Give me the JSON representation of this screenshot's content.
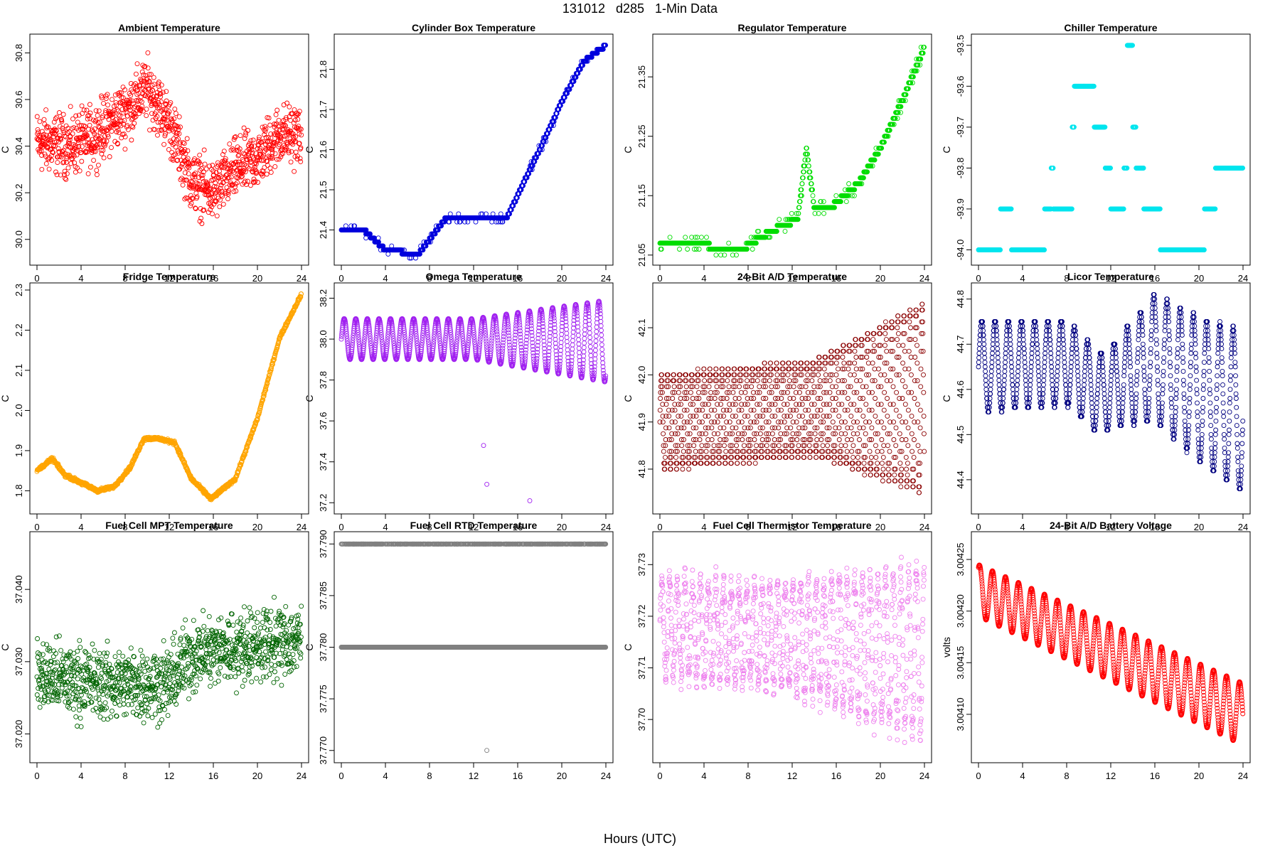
{
  "page": {
    "title": "131012   d285   1-Min Data",
    "xlabel": "Hours (UTC)"
  },
  "colors": {
    "red": "#ff0000",
    "blue": "#0000dd",
    "green": "#00dd00",
    "cyan": "#00e5ee",
    "orange": "#ffa500",
    "purple": "#a020f0",
    "darkred": "#8b0000",
    "navy": "#000080",
    "darkgreen": "#006400",
    "gray": "#808080",
    "violet": "#ee82ee"
  },
  "chart_data": [
    {
      "id": "ambient",
      "type": "scatter",
      "title": "Ambient Temperature",
      "ylabel": "C",
      "color": "#ff0000",
      "xlim": [
        0,
        24
      ],
      "ylim": [
        29.92,
        30.85
      ],
      "xticks": [
        "0",
        "4",
        "8",
        "12",
        "16",
        "20",
        "24"
      ],
      "yticks": [
        30.0,
        30.2,
        30.4,
        30.6,
        30.8
      ],
      "ytick_labels": [
        "30.0",
        "30.2",
        "30.4",
        "30.6",
        "30.8"
      ],
      "pattern": "noise",
      "trend": [
        [
          0,
          30.42
        ],
        [
          3,
          30.4
        ],
        [
          5,
          30.44
        ],
        [
          8,
          30.55
        ],
        [
          10,
          30.65
        ],
        [
          12,
          30.5
        ],
        [
          14,
          30.25
        ],
        [
          16,
          30.2
        ],
        [
          18,
          30.3
        ],
        [
          20,
          30.35
        ],
        [
          22,
          30.45
        ],
        [
          24,
          30.45
        ]
      ],
      "noise": 0.09
    },
    {
      "id": "cylinder",
      "type": "scatter",
      "title": "Cylinder Box Temperature",
      "ylabel": "C",
      "color": "#0000dd",
      "xlim": [
        0,
        24
      ],
      "ylim": [
        21.33,
        21.87
      ],
      "xticks": [
        "0",
        "4",
        "8",
        "12",
        "16",
        "20",
        "24"
      ],
      "yticks": [
        21.4,
        21.5,
        21.6,
        21.7,
        21.8
      ],
      "ytick_labels": [
        "21.4",
        "21.5",
        "21.6",
        "21.7",
        "21.8"
      ],
      "pattern": "stepped",
      "trend": [
        [
          0,
          21.4
        ],
        [
          2,
          21.4
        ],
        [
          4,
          21.35
        ],
        [
          7,
          21.34
        ],
        [
          9.5,
          21.43
        ],
        [
          15,
          21.43
        ],
        [
          18,
          21.6
        ],
        [
          20,
          21.72
        ],
        [
          22,
          21.82
        ],
        [
          24,
          21.86
        ]
      ],
      "step": 0.01
    },
    {
      "id": "regulator",
      "type": "scatter",
      "title": "Regulator Temperature",
      "ylabel": "C",
      "color": "#00dd00",
      "xlim": [
        0,
        24
      ],
      "ylim": [
        21.045,
        21.41
      ],
      "xticks": [
        "0",
        "4",
        "8",
        "12",
        "16",
        "20",
        "24"
      ],
      "yticks": [
        21.05,
        21.15,
        21.25,
        21.35
      ],
      "ytick_labels": [
        "21.05",
        "21.15",
        "21.25",
        "21.35"
      ],
      "pattern": "stepped",
      "trend": [
        [
          0,
          21.07
        ],
        [
          4,
          21.07
        ],
        [
          5,
          21.06
        ],
        [
          7.5,
          21.06
        ],
        [
          10,
          21.09
        ],
        [
          12.5,
          21.11
        ],
        [
          13.3,
          21.23
        ],
        [
          14,
          21.13
        ],
        [
          15.5,
          21.13
        ],
        [
          18,
          21.17
        ],
        [
          20,
          21.23
        ],
        [
          22,
          21.31
        ],
        [
          24,
          21.4
        ]
      ],
      "step": 0.01
    },
    {
      "id": "chiller",
      "type": "scatter",
      "title": "Chiller Temperature",
      "ylabel": "C",
      "color": "#00e5ee",
      "xlim": [
        0,
        24
      ],
      "ylim": [
        -94.02,
        -93.49
      ],
      "xticks": [
        "0",
        "4",
        "8",
        "12",
        "16",
        "20",
        "24"
      ],
      "yticks": [
        -94.0,
        -93.9,
        -93.8,
        -93.7,
        -93.6,
        -93.5
      ],
      "ytick_labels": [
        "-94.0",
        "-93.9",
        "-93.8",
        "-93.7",
        "-93.6",
        "-93.5"
      ],
      "pattern": "levels",
      "segments": [
        [
          0,
          2,
          -94.0
        ],
        [
          2,
          3,
          -93.9
        ],
        [
          3,
          6,
          -94.0
        ],
        [
          6,
          6.6,
          -93.9
        ],
        [
          6.6,
          6.8,
          -93.8
        ],
        [
          6.8,
          8.5,
          -93.9
        ],
        [
          8.5,
          8.7,
          -93.7
        ],
        [
          8.7,
          10.5,
          -93.6
        ],
        [
          10.5,
          11.5,
          -93.7
        ],
        [
          11.5,
          12,
          -93.8
        ],
        [
          12,
          13.2,
          -93.9
        ],
        [
          13.2,
          13.5,
          -93.8
        ],
        [
          13.5,
          14,
          -93.5
        ],
        [
          14,
          14.3,
          -93.7
        ],
        [
          14.3,
          15,
          -93.8
        ],
        [
          15,
          16.5,
          -93.9
        ],
        [
          16.5,
          20.5,
          -94.0
        ],
        [
          20.5,
          21.5,
          -93.9
        ],
        [
          21.5,
          24,
          -93.8
        ]
      ]
    },
    {
      "id": "fridge",
      "type": "scatter",
      "title": "Fridge Temperature",
      "ylabel": "C",
      "color": "#ffa500",
      "xlim": [
        0,
        24
      ],
      "ylim": [
        1.76,
        2.3
      ],
      "xticks": [
        "0",
        "4",
        "8",
        "12",
        "16",
        "20",
        "24"
      ],
      "yticks": [
        1.8,
        1.9,
        2.0,
        2.1,
        2.2,
        2.3
      ],
      "ytick_labels": [
        "1.8",
        "1.9",
        "2.0",
        "2.1",
        "2.2",
        "2.3"
      ],
      "pattern": "smooth",
      "trend": [
        [
          0,
          1.85
        ],
        [
          1.4,
          1.88
        ],
        [
          2.5,
          1.84
        ],
        [
          4,
          1.82
        ],
        [
          5.5,
          1.8
        ],
        [
          7,
          1.81
        ],
        [
          8.5,
          1.86
        ],
        [
          9.7,
          1.93
        ],
        [
          11,
          1.93
        ],
        [
          12.5,
          1.92
        ],
        [
          14,
          1.83
        ],
        [
          15.8,
          1.78
        ],
        [
          18,
          1.83
        ],
        [
          20,
          1.98
        ],
        [
          22,
          2.18
        ],
        [
          24,
          2.29
        ]
      ]
    },
    {
      "id": "omega",
      "type": "scatter",
      "title": "Omega Temperature",
      "ylabel": "C",
      "color": "#a020f0",
      "xlim": [
        0,
        24
      ],
      "ylim": [
        37.18,
        38.24
      ],
      "xticks": [
        "0",
        "4",
        "8",
        "12",
        "16",
        "20",
        "24"
      ],
      "yticks": [
        37.2,
        37.4,
        37.6,
        37.8,
        38.0,
        38.2
      ],
      "ytick_labels": [
        "37.2",
        "37.4",
        "37.6",
        "37.8",
        "38.0",
        "38.2"
      ],
      "pattern": "oscillation",
      "period": 1.05,
      "center": [
        [
          0,
          38.0
        ],
        [
          12,
          38.0
        ],
        [
          24,
          37.99
        ]
      ],
      "amp": [
        [
          0,
          0.1
        ],
        [
          12,
          0.1
        ],
        [
          24,
          0.2
        ]
      ],
      "outliers": [
        [
          12.9,
          37.48
        ],
        [
          13.2,
          37.29
        ],
        [
          17.1,
          37.21
        ]
      ]
    },
    {
      "id": "ad24temp",
      "type": "scatter",
      "title": "24-Bit A/D Temperature",
      "ylabel": "C",
      "color": "#8b0000",
      "xlim": [
        0,
        24
      ],
      "ylim": [
        41.72,
        42.18
      ],
      "xticks": [
        "0",
        "4",
        "8",
        "12",
        "16",
        "20",
        "24"
      ],
      "yticks": [
        41.8,
        41.9,
        42.0,
        42.1
      ],
      "ytick_labels": [
        "41.8",
        "41.9",
        "42.0",
        "42.1"
      ],
      "pattern": "oscillation",
      "period": 0.55,
      "center": [
        [
          0,
          41.9
        ],
        [
          24,
          41.95
        ]
      ],
      "amp": [
        [
          0,
          0.1
        ],
        [
          14,
          0.1
        ],
        [
          24,
          0.2
        ]
      ],
      "quantize": 0.0125
    },
    {
      "id": "licor",
      "type": "scatter",
      "title": "Licor Temperature",
      "ylabel": "C",
      "color": "#000080",
      "xlim": [
        0,
        24
      ],
      "ylim": [
        44.34,
        44.82
      ],
      "xticks": [
        "0",
        "4",
        "8",
        "12",
        "16",
        "20",
        "24"
      ],
      "yticks": [
        44.4,
        44.5,
        44.6,
        44.7,
        44.8
      ],
      "ytick_labels": [
        "44.4",
        "44.5",
        "44.6",
        "44.7",
        "44.8"
      ],
      "pattern": "oscillation",
      "period": 1.2,
      "center": [
        [
          0,
          44.65
        ],
        [
          8,
          44.66
        ],
        [
          11,
          44.59
        ],
        [
          16,
          44.67
        ],
        [
          20,
          44.6
        ],
        [
          24,
          44.55
        ]
      ],
      "amp": [
        [
          0,
          0.1
        ],
        [
          12,
          0.09
        ],
        [
          16,
          0.14
        ],
        [
          24,
          0.18
        ]
      ],
      "quantize": 0.01
    },
    {
      "id": "fcmpt",
      "type": "scatter",
      "title": "Fuel Cell MPT Temperature",
      "ylabel": "C",
      "color": "#006400",
      "xlim": [
        0,
        24
      ],
      "ylim": [
        37.017,
        37.047
      ],
      "xticks": [
        "0",
        "4",
        "8",
        "12",
        "16",
        "20",
        "24"
      ],
      "yticks": [
        37.02,
        37.03,
        37.04
      ],
      "ytick_labels": [
        "37.020",
        "37.030",
        "37.040"
      ],
      "pattern": "noise",
      "trend": [
        [
          0,
          37.028
        ],
        [
          6,
          37.027
        ],
        [
          12,
          37.027
        ],
        [
          14,
          37.031
        ],
        [
          18,
          37.032
        ],
        [
          24,
          37.033
        ]
      ],
      "noise": 0.0035
    },
    {
      "id": "fcrtd",
      "type": "scatter",
      "title": "Fuel Cell RTD Temperature",
      "ylabel": "C",
      "color": "#808080",
      "xlim": [
        0,
        24
      ],
      "ylim": [
        37.7695,
        37.7905
      ],
      "xticks": [
        "0",
        "4",
        "8",
        "12",
        "16",
        "20",
        "24"
      ],
      "yticks": [
        37.77,
        37.775,
        37.78,
        37.785,
        37.79
      ],
      "ytick_labels": [
        "37.770",
        "37.775",
        "37.780",
        "37.785",
        "37.790"
      ],
      "pattern": "twolevel",
      "levels": [
        37.78,
        37.79
      ],
      "outliers": [
        [
          13.2,
          37.77
        ]
      ]
    },
    {
      "id": "fcthermistor",
      "type": "scatter",
      "title": "Fuel Cell Thermistor Temperature",
      "ylabel": "C",
      "color": "#ee82ee",
      "xlim": [
        0,
        24
      ],
      "ylim": [
        37.693,
        37.735
      ],
      "xticks": [
        "0",
        "4",
        "8",
        "12",
        "16",
        "20",
        "24"
      ],
      "yticks": [
        37.7,
        37.71,
        37.72,
        37.73
      ],
      "ytick_labels": [
        "37.70",
        "37.71",
        "37.72",
        "37.73"
      ],
      "pattern": "oscillation",
      "period": 0.7,
      "center": [
        [
          0,
          37.718
        ],
        [
          12,
          37.716
        ],
        [
          24,
          37.713
        ]
      ],
      "amp": [
        [
          0,
          0.009
        ],
        [
          12,
          0.01
        ],
        [
          24,
          0.016
        ]
      ],
      "jitter": 0.002
    },
    {
      "id": "battery",
      "type": "scatter",
      "title": "24-Bit A/D Battery Voltage",
      "ylabel": "volts",
      "color": "#ff0000",
      "xlim": [
        0,
        24
      ],
      "ylim": [
        3.00406,
        3.00427
      ],
      "xticks": [
        "0",
        "4",
        "8",
        "12",
        "16",
        "20",
        "24"
      ],
      "yticks": [
        3.0041,
        3.00415,
        3.0042,
        3.00425
      ],
      "ytick_labels": [
        "3.00410",
        "3.00415",
        "3.00420",
        "3.00425"
      ],
      "pattern": "oscillation",
      "period": 1.18,
      "phase": 1.1,
      "center": [
        [
          0,
          3.00422
        ],
        [
          24,
          3.0041
        ]
      ],
      "amp": [
        [
          0,
          2.5e-05
        ],
        [
          24,
          3e-05
        ]
      ]
    }
  ]
}
